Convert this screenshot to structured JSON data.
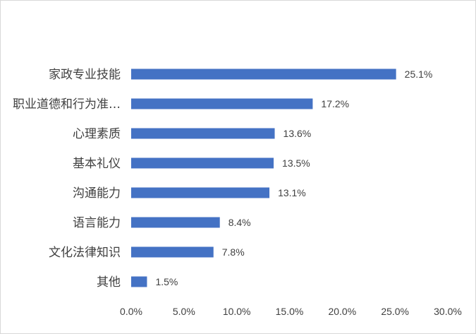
{
  "chart_data": {
    "type": "bar",
    "orientation": "horizontal",
    "title": "",
    "xlabel": "",
    "ylabel": "",
    "categories": [
      "家政专业技能",
      "职业道德和行为准…",
      "心理素质",
      "基本礼仪",
      "沟通能力",
      "语言能力",
      "文化法律知识",
      "其他"
    ],
    "values": [
      25.1,
      17.2,
      13.6,
      13.5,
      13.1,
      8.4,
      7.8,
      1.5
    ],
    "value_labels": [
      "25.1%",
      "17.2%",
      "13.6%",
      "13.5%",
      "13.1%",
      "8.4%",
      "7.8%",
      "1.5%"
    ],
    "xlim": [
      0,
      30
    ],
    "x_ticks": [
      "0.0%",
      "5.0%",
      "10.0%",
      "15.0%",
      "20.0%",
      "25.0%",
      "30.0%"
    ],
    "grid": false,
    "legend": "none",
    "bar_color": "#4472c4"
  }
}
